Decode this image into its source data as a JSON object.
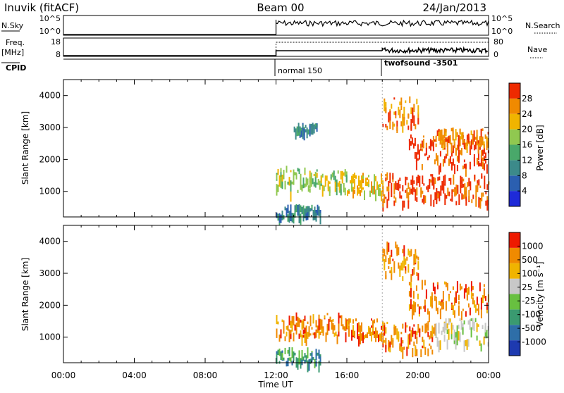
{
  "header": {
    "station": "Inuvik (fitACF)",
    "beam": "Beam 00",
    "date": "24/Jan/2013"
  },
  "strip_labels": {
    "nsky_label": "N.Sky",
    "nsky_ticks": [
      "10^5",
      "10^0"
    ],
    "nsearch_label": "N.Search",
    "nsearch_ticks": [
      "10^5",
      "10^0"
    ],
    "freq_label": "Freq.",
    "freq_unit": "[MHz]",
    "freq_ticks": [
      "18",
      "8"
    ],
    "nave_label": "Nave",
    "nave_ticks": [
      "80",
      "0"
    ],
    "cpid_label": "CPID",
    "cpid_modes": [
      {
        "start_hour": 12,
        "label": "normal 150"
      },
      {
        "start_hour": 18,
        "label": "twofsound -3501"
      }
    ]
  },
  "time_axis": {
    "label": "Time UT",
    "ticks": [
      "00:00",
      "04:00",
      "08:00",
      "12:00",
      "16:00",
      "20:00",
      "00:00"
    ],
    "range_hours": [
      0,
      24
    ]
  },
  "chart_data": [
    {
      "type": "heatmap",
      "name": "power",
      "ylabel": "Slant Range [km]",
      "yticks": [
        "4000",
        "3000",
        "2000",
        "1000"
      ],
      "ylim": [
        200,
        4500
      ],
      "colorbar_label": "Power [dB]",
      "colorbar_ticks": [
        "28",
        "24",
        "20",
        "16",
        "12",
        "8",
        "4"
      ],
      "colorbar_range": [
        0,
        32
      ],
      "colors": [
        "#1e2ad8",
        "#2b5fb0",
        "#3c8a8a",
        "#49a86a",
        "#90c850",
        "#f0b400",
        "#f08a00",
        "#ee2a00"
      ],
      "regions": [
        {
          "t": [
            12.0,
            13.8
          ],
          "r": [
            1000,
            1800
          ],
          "level": 4
        },
        {
          "t": [
            13.8,
            16.0
          ],
          "r": [
            1050,
            1700
          ],
          "level": 4
        },
        {
          "t": [
            16.0,
            18.0
          ],
          "r": [
            1000,
            1600
          ],
          "level": 5
        },
        {
          "t": [
            12.0,
            14.5
          ],
          "r": [
            250,
            600
          ],
          "level": 2
        },
        {
          "t": [
            13.0,
            14.3
          ],
          "r": [
            2900,
            3150
          ],
          "level": 2
        },
        {
          "t": [
            18.0,
            24.0
          ],
          "r": [
            700,
            1600
          ],
          "level": 7
        },
        {
          "t": [
            19.5,
            24.0
          ],
          "r": [
            1800,
            2800
          ],
          "level": 7
        },
        {
          "t": [
            21.0,
            24.0
          ],
          "r": [
            2500,
            3000
          ],
          "level": 6
        },
        {
          "t": [
            18.0,
            20.0
          ],
          "r": [
            3000,
            4000
          ],
          "level": 6
        }
      ]
    },
    {
      "type": "heatmap",
      "name": "velocity",
      "ylabel": "Slant Range [km]",
      "yticks": [
        "4000",
        "3000",
        "2000",
        "1000"
      ],
      "ylim": [
        200,
        4500
      ],
      "colorbar_label": "Velocity [m s⁻¹]",
      "colorbar_ticks": [
        "1000",
        "500",
        "100",
        "25",
        "-25",
        "-100",
        "-500",
        "-1000"
      ],
      "colors": [
        "#1e3ab0",
        "#2e6ea8",
        "#3a9a70",
        "#68c040",
        "#c8c8c8",
        "#f0b400",
        "#f08a00",
        "#ee1a00"
      ],
      "regions": [
        {
          "t": [
            12.0,
            16.0
          ],
          "r": [
            1000,
            1800
          ],
          "level": 6
        },
        {
          "t": [
            16.0,
            18.0
          ],
          "r": [
            1000,
            1600
          ],
          "level": 6
        },
        {
          "t": [
            12.0,
            14.5
          ],
          "r": [
            250,
            700
          ],
          "level": 2
        },
        {
          "t": [
            18.0,
            21.0
          ],
          "r": [
            600,
            1500
          ],
          "level": 6
        },
        {
          "t": [
            21.0,
            24.0
          ],
          "r": [
            800,
            1600
          ],
          "level": 4
        },
        {
          "t": [
            19.5,
            24.0
          ],
          "r": [
            1800,
            2800
          ],
          "level": 6
        },
        {
          "t": [
            18.0,
            20.0
          ],
          "r": [
            2900,
            4000
          ],
          "level": 6
        }
      ]
    }
  ]
}
